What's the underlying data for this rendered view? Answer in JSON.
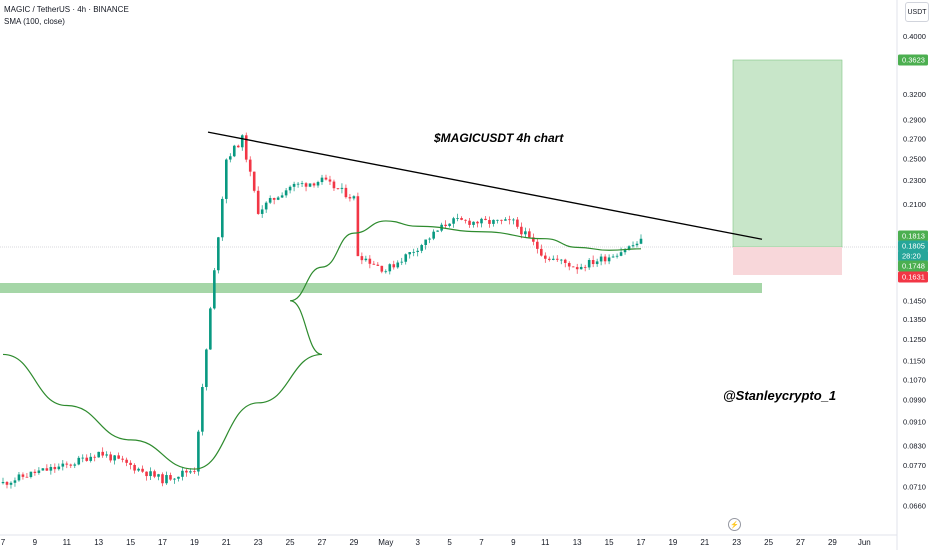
{
  "header": {
    "symbol_line": "MAGIC / TetherUS · 4h · BINANCE",
    "indicator_line": "SMA (100, close)"
  },
  "axis_unit": "USDT",
  "annotations": {
    "chart_title": "$MAGICUSDT 4h chart",
    "author": "@Stanleycrypto_1"
  },
  "colors": {
    "up": "#089981",
    "down": "#f23645",
    "sma": "#2e8b2e",
    "support_zone": "#a5d6a7",
    "target_zone": "#c8e6c9",
    "stop_zone": "#f8d7da",
    "trendline": "#000000"
  },
  "chart_data": {
    "type": "candlestick",
    "y_scale": "log",
    "ylim": [
      0.0625,
      0.46
    ],
    "y_ticks": [
      "0.4000",
      "0.3200",
      "0.2900",
      "0.2700",
      "0.2500",
      "0.2300",
      "0.2100",
      "0.1813",
      "0.1805",
      "28:20",
      "0.1748",
      "0.1631",
      "0.1450",
      "0.1350",
      "0.1250",
      "0.1150",
      "0.1070",
      "0.0990",
      "0.0910",
      "0.0830",
      "0.0770",
      "0.0710",
      "0.0660"
    ],
    "x_ticks": [
      "7",
      "9",
      "11",
      "13",
      "15",
      "17",
      "19",
      "21",
      "23",
      "25",
      "27",
      "29",
      "May",
      "3",
      "5",
      "7",
      "9",
      "11",
      "13",
      "15",
      "17",
      "19",
      "21",
      "23",
      "25",
      "27",
      "29",
      "Jun"
    ],
    "price_badges": [
      {
        "label": "0.3623",
        "value": 0.3623,
        "color": "#4caf50"
      },
      {
        "label": "0.1813",
        "value": 0.1813,
        "color": "#4caf50"
      },
      {
        "label": "0.1805",
        "value": 0.1805,
        "color": "#26a69a"
      },
      {
        "label": "28:20",
        "value": 0.1776,
        "color": "#26a69a"
      },
      {
        "label": "0.1748",
        "value": 0.1748,
        "color": "#4caf50"
      },
      {
        "label": "0.1631",
        "value": 0.1631,
        "color": "#f23645"
      }
    ],
    "price_path": [
      [
        "Apr 7",
        0.072
      ],
      [
        "Apr 9",
        0.075
      ],
      [
        "Apr 11",
        0.077
      ],
      [
        "Apr 13",
        0.081
      ],
      [
        "Apr 15",
        0.077
      ],
      [
        "Apr 17",
        0.073
      ],
      [
        "Apr 19",
        0.076
      ],
      [
        "Apr 20",
        0.14
      ],
      [
        "Apr 21",
        0.25
      ],
      [
        "Apr 22",
        0.27
      ],
      [
        "Apr 23",
        0.205
      ],
      [
        "Apr 25",
        0.225
      ],
      [
        "Apr 27",
        0.23
      ],
      [
        "Apr 29",
        0.215
      ],
      [
        "May 1",
        0.22
      ],
      [
        "May 3",
        0.205
      ],
      [
        "May 5",
        0.175
      ],
      [
        "May 7",
        0.163
      ],
      [
        "May 9",
        0.178
      ],
      [
        "May 11",
        0.197
      ],
      [
        "May 13",
        0.196
      ],
      [
        "May 15",
        0.196
      ],
      [
        "May 17",
        0.172
      ],
      [
        "May 19",
        0.165
      ],
      [
        "May 21",
        0.172
      ],
      [
        "May 23",
        0.182
      ]
    ],
    "sma_100": [
      [
        "Apr 7",
        0.118
      ],
      [
        "Apr 11",
        0.097
      ],
      [
        "Apr 15",
        0.085
      ],
      [
        "Apr 19",
        0.076
      ],
      [
        "Apr 23",
        0.098
      ],
      [
        "Apr 27",
        0.118
      ],
      [
        "May 1",
        0.145
      ],
      [
        "May 3",
        0.165
      ],
      [
        "May 5",
        0.188
      ],
      [
        "May 7",
        0.197
      ],
      [
        "May 9",
        0.193
      ],
      [
        "May 13",
        0.189
      ],
      [
        "May 17",
        0.184
      ],
      [
        "May 19",
        0.178
      ],
      [
        "May 21",
        0.176
      ],
      [
        "May 23",
        0.177
      ]
    ],
    "trendline": [
      [
        "Apr 20",
        0.277
      ],
      [
        "May 24",
        0.1836
      ]
    ],
    "support_zone": [
      0.1607,
      0.165
    ],
    "target_zone": [
      0.1813,
      0.3623
    ],
    "stop_zone": [
      0.1631,
      0.1813
    ]
  }
}
